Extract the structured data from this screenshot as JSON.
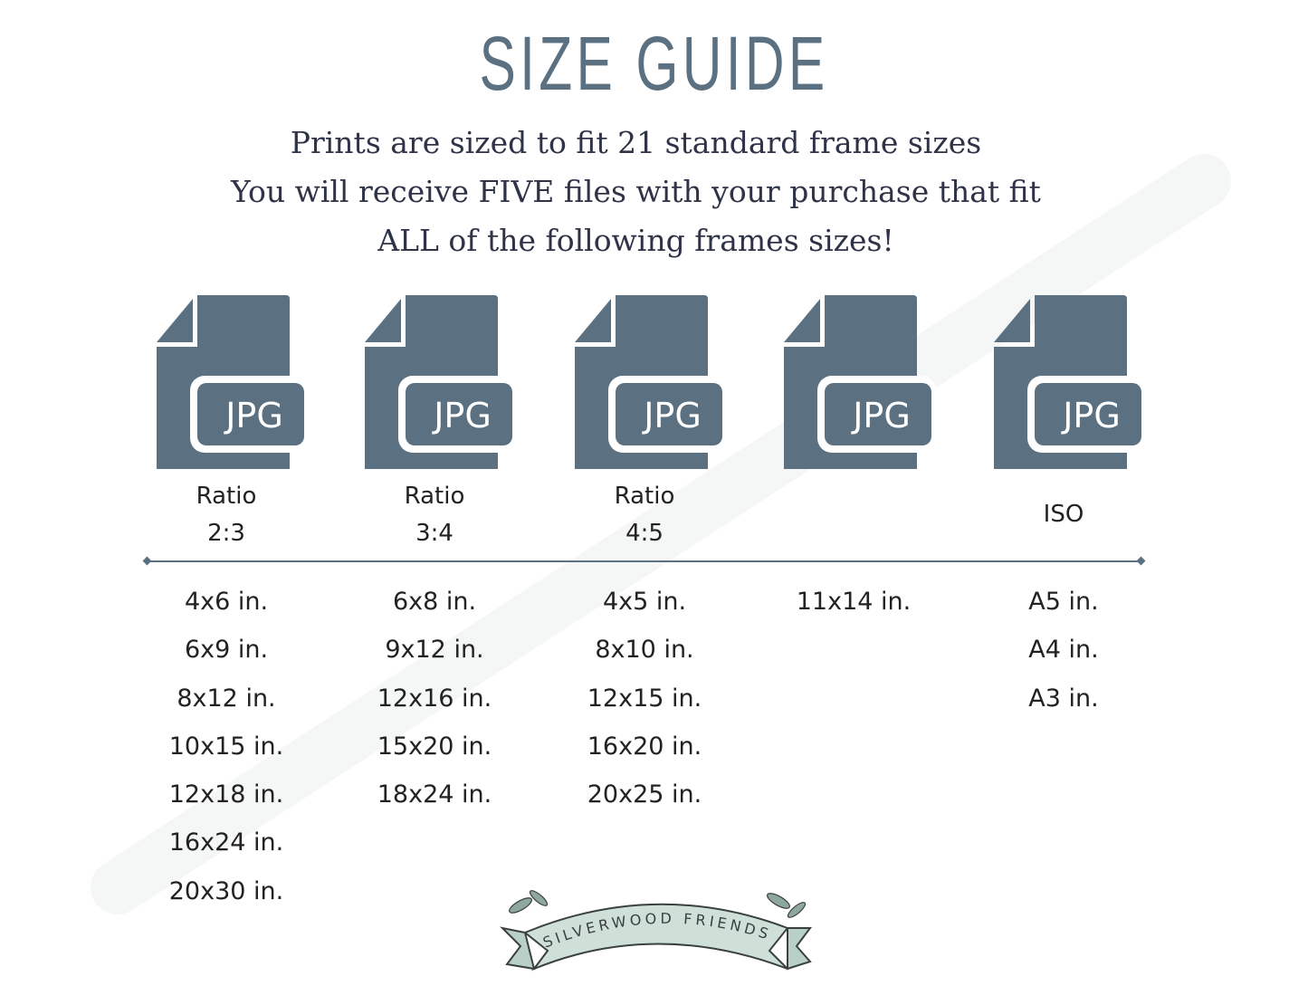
{
  "title": "SIZE GUIDE",
  "subtitle_lines": [
    "Prints are sized to fit 21 standard frame sizes",
    "You will receive FIVE files with your purchase that fit",
    "ALL of the following frames sizes!"
  ],
  "icon_color": "#5b7182",
  "files": [
    {
      "badge": "JPG",
      "label_line1": "Ratio",
      "label_line2": "2:3",
      "sizes": [
        "4x6 in.",
        "6x9 in.",
        "8x12 in.",
        "10x15 in.",
        "12x18 in.",
        "16x24 in.",
        "20x30 in."
      ]
    },
    {
      "badge": "JPG",
      "label_line1": "Ratio",
      "label_line2": "3:4",
      "sizes": [
        "6x8 in.",
        "9x12 in.",
        "12x16 in.",
        "15x20 in.",
        "18x24 in."
      ]
    },
    {
      "badge": "JPG",
      "label_line1": "Ratio",
      "label_line2": "4:5",
      "sizes": [
        "4x5 in.",
        "8x10 in.",
        "12x15 in.",
        "16x20 in.",
        "20x25 in."
      ]
    },
    {
      "badge": "JPG",
      "label_line1": "",
      "label_line2": "",
      "sizes": [
        "11x14 in."
      ]
    },
    {
      "badge": "JPG",
      "label_single": "ISO",
      "sizes": [
        "A5 in.",
        "A4 in.",
        "A3 in."
      ]
    }
  ],
  "watermark": "silverwoodfriends",
  "logo_text": "SILVERWOOD FRIENDS"
}
